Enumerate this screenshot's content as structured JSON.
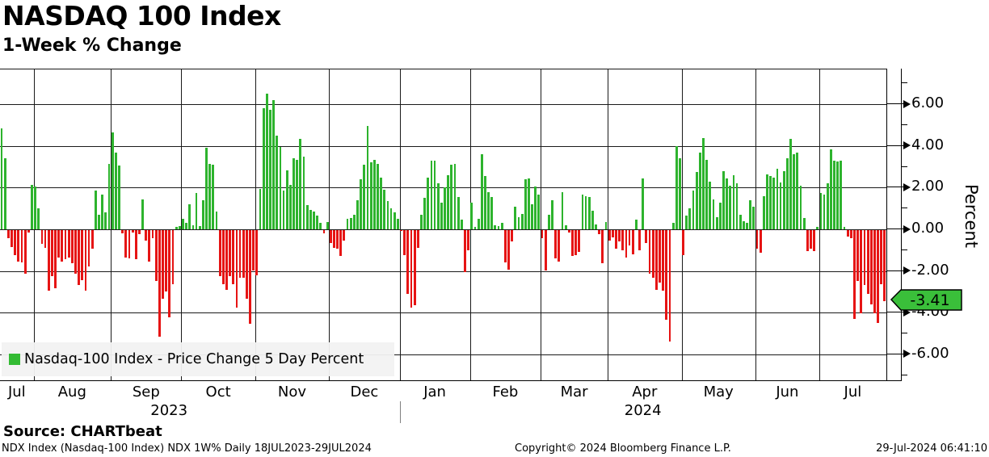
{
  "header": {
    "title": "NASDAQ 100 Index",
    "subtitle": "1-Week % Change"
  },
  "legend": {
    "label": "Nasdaq-100 Index - Price Change 5 Day Percent"
  },
  "y_axis": {
    "title": "Percent",
    "tick_labels": [
      "6.00",
      "4.00",
      "2.00",
      "0.00",
      "-2.00",
      "-4.00",
      "-6.00"
    ],
    "last_value_badge": "-3.41"
  },
  "x_axis": {
    "month_labels": [
      "Jul",
      "Aug",
      "Sep",
      "Oct",
      "Nov",
      "Dec",
      "Jan",
      "Feb",
      "Mar",
      "Apr",
      "May",
      "Jun",
      "Jul"
    ],
    "year_labels": [
      "2023",
      "2024"
    ]
  },
  "footer": {
    "source": "Source: CHARTbeat",
    "info_left": "NDX Index (Nasdaq-100 Index) NDX 1W%  Daily 18JUL2023-29JUL2024",
    "copyright": "Copyright© 2024 Bloomberg Finance L.P.",
    "timestamp": "29-Jul-2024 06:41:10"
  },
  "colors": {
    "positive": "#2db32d",
    "negative": "#e61414",
    "badge": "#3abf3a",
    "legend_swatch": "#33bb33"
  },
  "chart_data": {
    "type": "bar",
    "title": "NASDAQ 100 Index",
    "subtitle": "1-Week % Change",
    "ylabel": "Percent",
    "ylim": [
      -7.3,
      7.7
    ],
    "yticks": [
      6,
      4,
      2,
      0,
      -2,
      -4,
      -6
    ],
    "legend": "Nasdaq-100 Index - Price Change 5 Day Percent",
    "last_value": -3.41,
    "grid": true,
    "months": [
      {
        "label": "Jul",
        "year": 2023,
        "values": [
          4.85,
          3.4,
          -0.4,
          -0.8,
          -1.2,
          -1.5,
          -1.55,
          -2.1,
          -0.1,
          2.15
        ]
      },
      {
        "label": "Aug",
        "year": 2023,
        "values": [
          2.05,
          1.0,
          -0.65,
          -0.85,
          -2.9,
          -2.2,
          -2.8,
          -1.3,
          -1.5,
          -1.4,
          -1.3,
          -1.6,
          -2.1,
          -2.65,
          -2.4,
          -2.9,
          -1.75,
          -0.9,
          1.85,
          0.7,
          1.65,
          0.8,
          3.15
        ]
      },
      {
        "label": "Sep",
        "year": 2023,
        "values": [
          4.65,
          3.7,
          3.05,
          -0.15,
          -1.3,
          -1.35,
          -0.1,
          -1.4,
          -0.2,
          1.45,
          -0.5,
          -1.5,
          -0.4,
          -2.45,
          -5.1,
          -3.3,
          -2.95,
          -4.2,
          -2.6,
          0.1,
          0.15
        ]
      },
      {
        "label": "Oct",
        "year": 2023,
        "values": [
          0.5,
          0.3,
          1.2,
          0.2,
          1.75,
          0.15,
          1.4,
          3.9,
          3.15,
          3.1,
          0.85,
          -2.2,
          -2.6,
          -2.85,
          -2.2,
          -2.6,
          -3.7,
          -2.3,
          -2.3,
          -3.3,
          -4.5,
          -1.95
        ]
      },
      {
        "label": "Nov",
        "year": 2023,
        "values": [
          -2.15,
          1.95,
          5.8,
          6.5,
          5.75,
          6.2,
          4.5,
          3.95,
          1.85,
          2.85,
          2.15,
          3.4,
          3.35,
          4.35,
          3.5,
          1.15,
          0.95,
          0.85,
          0.65,
          0.3,
          -0.15,
          0.35
        ]
      },
      {
        "label": "Dec",
        "year": 2023,
        "values": [
          -0.6,
          -0.85,
          -0.9,
          -1.25,
          -0.5,
          0.5,
          0.55,
          0.7,
          1.4,
          2.4,
          3.1,
          4.95,
          3.2,
          3.35,
          3.15,
          2.5,
          1.9,
          1.35,
          1.0,
          0.8,
          0.5
        ]
      },
      {
        "label": "Jan",
        "year": 2024,
        "values": [
          -0.05,
          -1.2,
          -3.05,
          -3.7,
          -3.6,
          -0.85,
          0.7,
          1.5,
          2.5,
          3.3,
          3.3,
          2.2,
          1.3,
          2.0,
          2.6,
          3.1,
          3.15,
          1.55,
          0.45,
          -2.0,
          -0.95
        ]
      },
      {
        "label": "Feb",
        "year": 2024,
        "values": [
          1.3,
          0.1,
          0.5,
          3.6,
          2.55,
          1.8,
          1.55,
          0.2,
          0.15,
          0.3,
          -1.55,
          -1.9,
          -0.55,
          1.1,
          0.6,
          0.75,
          2.4,
          2.45,
          1.2,
          2.05,
          1.65
        ]
      },
      {
        "label": "Mar",
        "year": 2024,
        "values": [
          -0.4,
          -1.95,
          0.7,
          1.4,
          -1.35,
          -1.5,
          1.8,
          0.2,
          -0.1,
          -1.25,
          -1.2,
          -1.05,
          1.65,
          1.6,
          1.55,
          0.9,
          0.25,
          -0.2,
          -1.6,
          0.35
        ]
      },
      {
        "label": "Apr",
        "year": 2024,
        "values": [
          -0.5,
          -0.35,
          -0.9,
          -0.55,
          -0.95,
          -1.3,
          -0.75,
          -1.15,
          0.45,
          -0.95,
          2.45,
          -0.6,
          -2.1,
          -2.3,
          -2.85,
          -2.5,
          -2.9,
          -4.3,
          -5.35,
          0.3,
          4.0,
          3.4
        ]
      },
      {
        "label": "May",
        "year": 2024,
        "values": [
          -1.2,
          0.65,
          1.0,
          1.85,
          2.75,
          3.7,
          4.4,
          3.35,
          2.3,
          1.45,
          0.6,
          1.3,
          2.8,
          2.45,
          2.1,
          2.6,
          2.2,
          0.7,
          0.4,
          0.3,
          1.4,
          1.1
        ]
      },
      {
        "label": "Jun",
        "year": 2024,
        "values": [
          -0.9,
          -1.1,
          1.6,
          2.65,
          2.55,
          2.5,
          2.9,
          2.25,
          2.8,
          3.4,
          4.35,
          3.6,
          3.7,
          2.1,
          0.55,
          -1.0,
          -0.9,
          -1.0,
          0.1
        ]
      },
      {
        "label": "Jul",
        "year": 2024,
        "values": [
          1.75,
          1.65,
          2.2,
          3.85,
          3.3,
          3.25,
          3.3,
          0.1,
          -0.3,
          -0.4,
          -4.25,
          -2.45,
          -4.0,
          -2.65,
          -3.05,
          -3.55,
          -4.0,
          -4.45,
          -2.6,
          -3.41
        ]
      }
    ]
  }
}
